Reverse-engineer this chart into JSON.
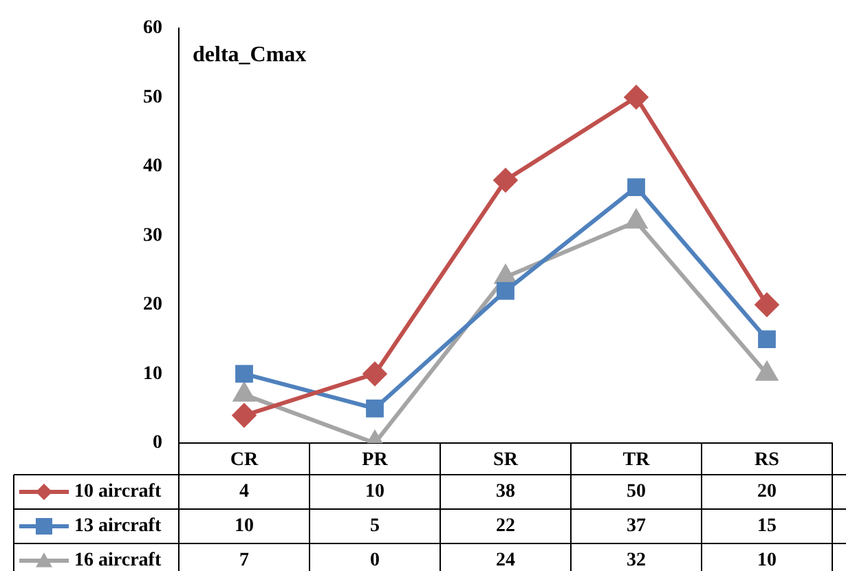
{
  "chart_data": {
    "type": "line",
    "title": "delta_Cmax",
    "categories": [
      "CR",
      "PR",
      "SR",
      "TR",
      "RS"
    ],
    "series": [
      {
        "name": "10 aircraft",
        "color": "#c0504d",
        "marker": "diamond",
        "values": [
          4,
          10,
          38,
          50,
          20
        ]
      },
      {
        "name": "13 aircraft",
        "color": "#4f81bd",
        "marker": "square",
        "values": [
          10,
          5,
          22,
          37,
          15
        ]
      },
      {
        "name": "16 aircraft",
        "color": "#a5a5a5",
        "marker": "triangle",
        "values": [
          7,
          0,
          24,
          32,
          10
        ]
      }
    ],
    "ylim": [
      0,
      60
    ],
    "yticks": [
      0,
      10,
      20,
      30,
      40,
      50,
      60
    ],
    "grid": false,
    "legend": "bottom",
    "data_labels": true
  }
}
